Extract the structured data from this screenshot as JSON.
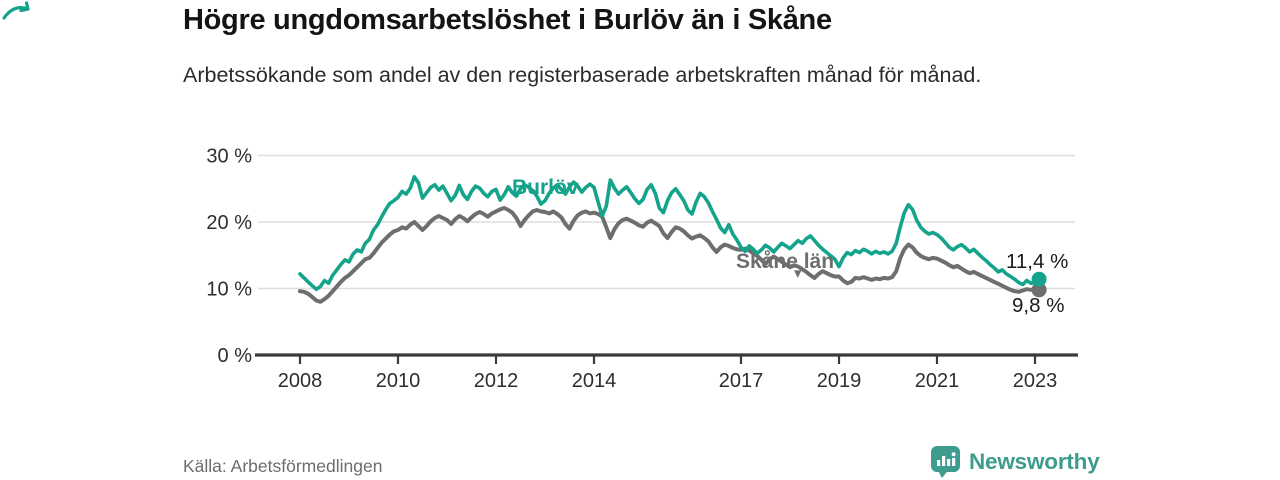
{
  "header": {
    "title": "Högre ungdomsarbetslöshet i Burlöv än i Skåne",
    "subtitle": "Arbetssökande som andel av den registerbaserade arbetskraften månad för månad."
  },
  "colors": {
    "burlov_teal": "#14a38b",
    "skane_gray": "#6e6e6e",
    "axis_dark": "#3b3b3b",
    "gridline": "#dedede",
    "tick_text": "#2e2e2e",
    "brand_teal": "#3d9c8e"
  },
  "annotations": {
    "skane_arrow": "▾"
  },
  "chart_data": {
    "type": "line",
    "title": "Högre ungdomsarbetslöshet i Burlöv än i Skåne",
    "subtitle": "Arbetssökande som andel av den registerbaserade arbetskraften månad för månad.",
    "x_start": "2008-01",
    "x_end": "2023-02",
    "x_frequency": "monthly",
    "x_tick_years": [
      2008,
      2010,
      2012,
      2014,
      2017,
      2019,
      2021,
      2023
    ],
    "x_tick_labels": [
      "2008",
      "2010",
      "2012",
      "2014",
      "2017",
      "2019",
      "2021",
      "2023"
    ],
    "y_ticks": [
      {
        "value": 0,
        "label": "0 %"
      },
      {
        "value": 10,
        "label": "10 %"
      },
      {
        "value": 20,
        "label": "20 %"
      },
      {
        "value": 30,
        "label": "30 %"
      }
    ],
    "ylim": [
      0,
      31
    ],
    "grid": "horizontal",
    "legend_position": "inline-labels",
    "series": [
      {
        "name": "Burlöv",
        "color": "#14a38b",
        "end_label": "11,4 %",
        "final_value": 11.4,
        "values": [
          12.2,
          11.6,
          11.0,
          10.4,
          9.9,
          10.3,
          11.2,
          10.8,
          12.0,
          12.8,
          13.6,
          14.3,
          14.0,
          15.2,
          15.8,
          15.5,
          16.8,
          17.4,
          18.8,
          19.6,
          20.8,
          21.9,
          22.8,
          23.2,
          23.7,
          24.6,
          24.2,
          25.1,
          26.8,
          25.9,
          23.6,
          24.4,
          25.2,
          25.6,
          24.8,
          25.4,
          24.3,
          23.2,
          24.0,
          25.5,
          24.1,
          23.4,
          24.6,
          25.4,
          25.1,
          24.3,
          23.8,
          24.6,
          24.9,
          23.3,
          24.1,
          25.3,
          24.4,
          23.9,
          25.0,
          25.6,
          25.2,
          24.7,
          23.9,
          22.7,
          23.2,
          24.3,
          25.1,
          25.6,
          24.9,
          24.2,
          25.3,
          26.0,
          25.4,
          24.5,
          25.2,
          25.7,
          25.2,
          23.0,
          20.9,
          22.4,
          26.3,
          25.1,
          24.2,
          24.8,
          25.3,
          24.4,
          23.5,
          22.8,
          23.4,
          24.9,
          25.6,
          24.3,
          22.1,
          21.4,
          23.2,
          24.4,
          25.0,
          24.1,
          23.2,
          21.8,
          21.2,
          23.0,
          24.3,
          23.8,
          22.9,
          21.6,
          20.4,
          19.1,
          18.4,
          19.6,
          18.2,
          17.3,
          16.2,
          15.6,
          16.4,
          15.9,
          15.3,
          15.8,
          16.5,
          16.1,
          15.5,
          16.2,
          16.8,
          16.4,
          16.0,
          16.6,
          17.2,
          16.8,
          17.5,
          17.9,
          17.2,
          16.5,
          15.9,
          15.4,
          14.9,
          14.4,
          13.3,
          14.6,
          15.4,
          15.1,
          15.7,
          15.4,
          15.9,
          15.6,
          15.2,
          15.6,
          15.3,
          15.5,
          15.2,
          15.6,
          16.8,
          19.3,
          21.4,
          22.6,
          21.9,
          20.3,
          19.2,
          18.6,
          18.2,
          18.4,
          18.1,
          17.6,
          16.9,
          16.2,
          15.8,
          16.3,
          16.6,
          16.1,
          15.5,
          15.9,
          15.3,
          14.7,
          14.2,
          13.6,
          13.1,
          12.5,
          12.8,
          12.2,
          11.8,
          11.4,
          10.9,
          10.6,
          11.2,
          10.8,
          10.9,
          11.4
        ]
      },
      {
        "name": "Skåne län",
        "color": "#6e6e6e",
        "end_label": "9,8 %",
        "final_value": 9.8,
        "values": [
          9.6,
          9.5,
          9.2,
          8.7,
          8.2,
          8.0,
          8.4,
          8.9,
          9.6,
          10.3,
          11.0,
          11.6,
          12.0,
          12.6,
          13.2,
          13.8,
          14.4,
          14.6,
          15.3,
          16.1,
          16.9,
          17.5,
          18.1,
          18.6,
          18.8,
          19.2,
          19.0,
          19.6,
          20.0,
          19.4,
          18.8,
          19.4,
          20.1,
          20.6,
          20.9,
          20.6,
          20.3,
          19.7,
          20.4,
          20.9,
          20.6,
          20.1,
          20.7,
          21.2,
          21.5,
          21.2,
          20.8,
          21.3,
          21.6,
          21.9,
          22.1,
          21.8,
          21.4,
          20.6,
          19.4,
          20.3,
          21.0,
          21.6,
          21.8,
          21.6,
          21.5,
          21.3,
          21.6,
          21.2,
          20.7,
          19.7,
          19.0,
          20.2,
          21.0,
          21.4,
          21.6,
          21.3,
          21.4,
          21.2,
          20.8,
          19.2,
          17.6,
          18.9,
          19.8,
          20.3,
          20.5,
          20.2,
          19.9,
          19.5,
          19.3,
          19.9,
          20.2,
          19.8,
          19.4,
          18.3,
          17.6,
          18.5,
          19.2,
          19.0,
          18.6,
          18.0,
          17.5,
          17.8,
          18.0,
          17.6,
          17.1,
          16.2,
          15.5,
          16.2,
          16.6,
          16.4,
          16.1,
          15.9,
          15.8,
          16.0,
          15.7,
          15.3,
          14.9,
          14.3,
          13.7,
          14.4,
          14.8,
          14.4,
          14.0,
          13.6,
          13.2,
          13.5,
          13.3,
          12.9,
          12.5,
          12.0,
          11.6,
          12.2,
          12.6,
          12.3,
          12.0,
          11.8,
          11.8,
          11.2,
          10.8,
          11.0,
          11.6,
          11.5,
          11.7,
          11.5,
          11.3,
          11.5,
          11.4,
          11.6,
          11.5,
          11.7,
          12.6,
          14.6,
          15.9,
          16.6,
          16.2,
          15.4,
          14.9,
          14.6,
          14.4,
          14.6,
          14.5,
          14.2,
          13.9,
          13.5,
          13.2,
          13.4,
          13.0,
          12.6,
          12.3,
          12.5,
          12.2,
          11.9,
          11.6,
          11.3,
          11.0,
          10.7,
          10.4,
          10.1,
          9.8,
          9.6,
          9.5,
          9.7,
          9.9,
          9.8,
          9.9,
          9.8
        ]
      }
    ]
  },
  "footer": {
    "source": "Källa: Arbetsförmedlingen",
    "brand": "Newsworthy"
  }
}
